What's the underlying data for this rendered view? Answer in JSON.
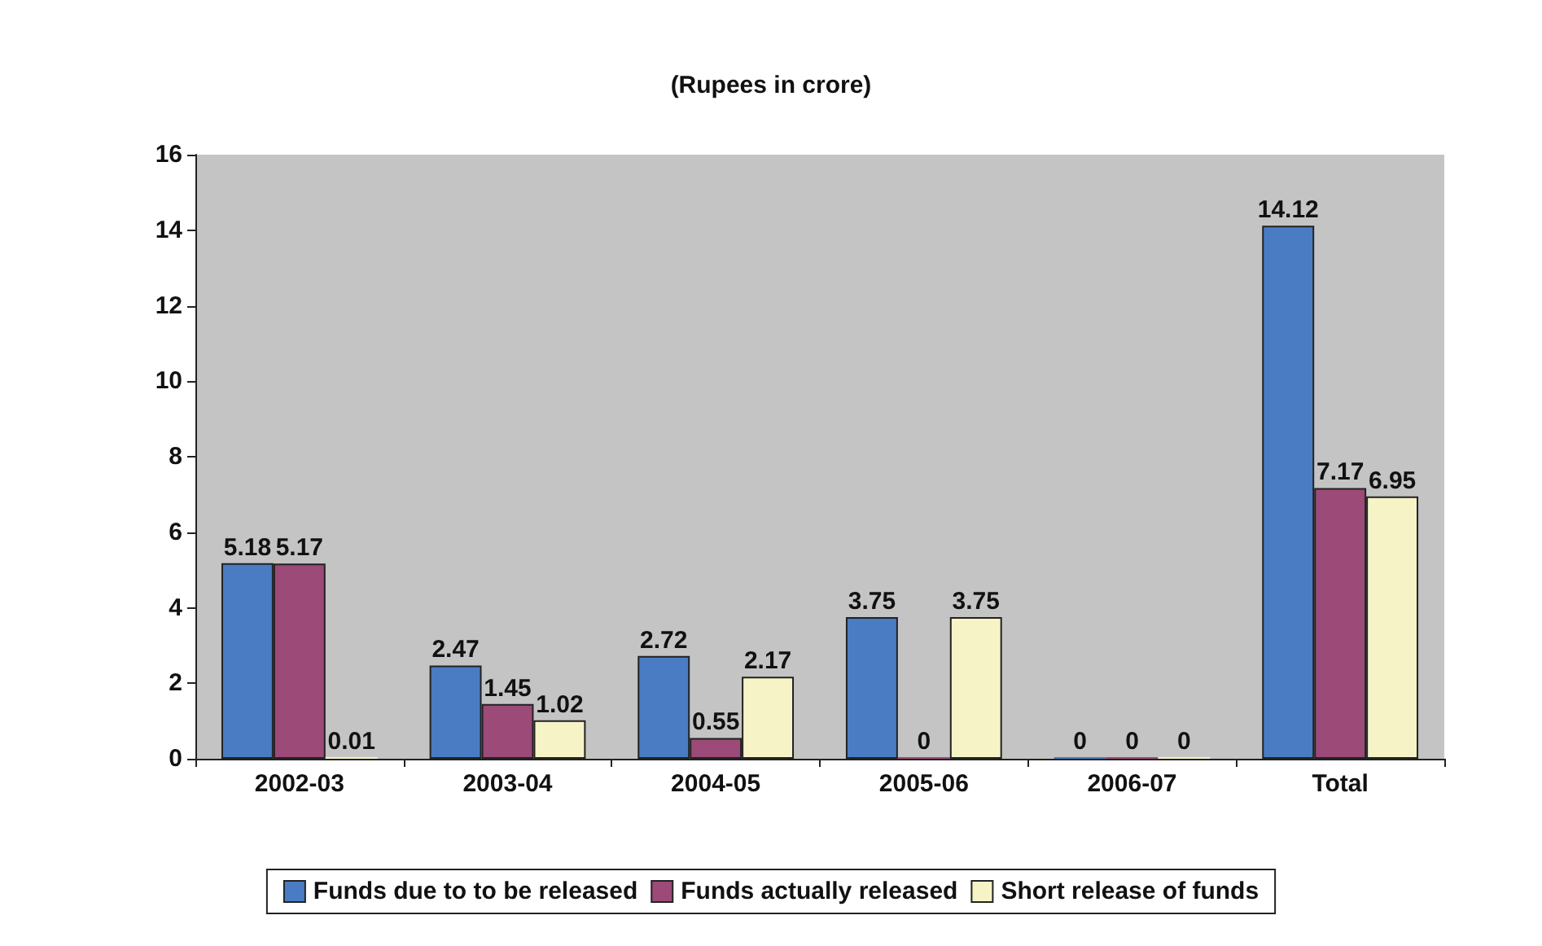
{
  "chart_data": {
    "type": "bar",
    "title": "(Rupees in crore)",
    "categories": [
      "2002-03",
      "2003-04",
      "2004-05",
      "2005-06",
      "2006-07",
      "Total"
    ],
    "series": [
      {
        "name": "Funds due to to be released",
        "color": "#4a7cc4",
        "values": [
          5.18,
          2.47,
          2.72,
          3.75,
          0,
          14.12
        ]
      },
      {
        "name": "Funds actually released",
        "color": "#9c4a78",
        "values": [
          5.17,
          1.45,
          0.55,
          0,
          0,
          7.17
        ]
      },
      {
        "name": "Short release of funds",
        "color": "#f6f3c6",
        "values": [
          0.01,
          1.02,
          2.17,
          3.75,
          0,
          6.95
        ]
      }
    ],
    "ylim": [
      0,
      16
    ],
    "yticks": [
      0,
      2,
      4,
      6,
      8,
      10,
      12,
      14,
      16
    ],
    "data_labels": true,
    "legend": "bottom",
    "grid": false
  }
}
